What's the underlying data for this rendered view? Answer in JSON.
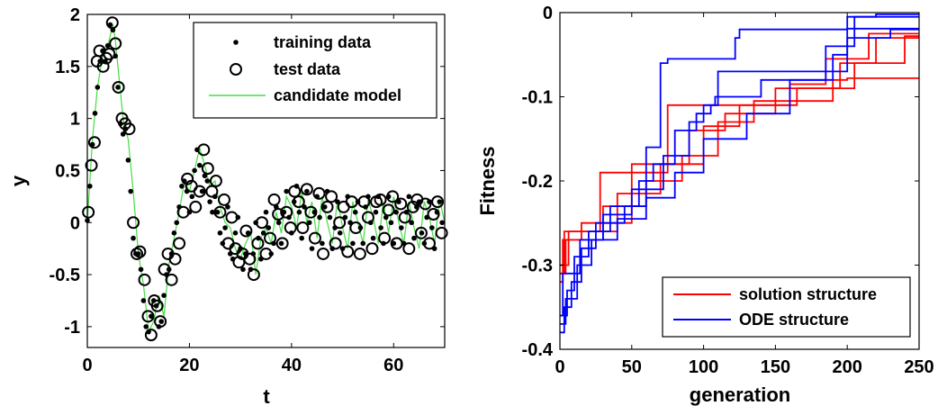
{
  "chart_data": [
    {
      "type": "scatter",
      "xlabel": "t",
      "ylabel": "y",
      "xlim": [
        0,
        70
      ],
      "ylim": [
        -1.2,
        2
      ],
      "xticks": [
        "0",
        "20",
        "40",
        "60"
      ],
      "xtick_values": [
        0,
        20,
        40,
        60
      ],
      "yticks": [
        "2",
        "1.5",
        "1",
        "0.5",
        "0",
        "-0.5",
        "-1"
      ],
      "ytick_values": [
        2,
        1.5,
        1,
        0.5,
        0,
        -0.5,
        -1
      ],
      "legend_position": "top-right",
      "series": [
        {
          "name": "training data",
          "marker": "dot",
          "color": "#000000",
          "x": [
            0,
            0.5,
            1,
            1.5,
            2,
            2.5,
            3,
            3.5,
            4,
            4.5,
            5,
            5.5,
            6,
            6.5,
            7,
            7.5,
            8,
            8.5,
            9,
            9.5,
            10,
            10.5,
            11,
            11.5,
            12,
            12.5,
            13,
            13.5,
            14,
            14.5,
            15,
            15.5,
            16,
            16.5,
            17,
            17.5,
            18,
            18.5,
            19,
            19.5,
            20,
            20.5,
            21,
            21.5,
            22,
            22.5,
            23,
            23.5,
            24,
            24.5,
            25,
            25.5,
            26,
            26.5,
            27,
            27.5,
            28,
            28.5,
            29,
            29.5,
            30,
            30.5,
            31,
            31.5,
            32,
            32.5,
            33,
            33.5,
            34,
            34.5,
            35,
            35.5,
            36,
            36.5,
            37,
            37.5,
            38,
            38.5,
            39,
            39.5,
            40,
            40.5,
            41,
            41.5,
            42,
            42.5,
            43,
            43.5,
            44,
            44.5,
            45,
            45.5,
            46,
            46.5,
            47,
            47.5,
            48,
            48.5,
            49,
            49.5,
            50,
            50.5,
            51,
            51.5,
            52,
            52.5,
            53,
            53.5,
            54,
            54.5,
            55,
            55.5,
            56,
            56.5,
            57,
            57.5,
            58,
            58.5,
            59,
            59.5,
            60,
            60.5,
            61,
            61.5,
            62,
            62.5,
            63,
            63.5,
            64,
            64.5,
            65,
            65.5,
            66,
            66.5,
            67,
            67.5,
            68,
            68.5,
            69,
            69.5
          ],
          "y": [
            0.02,
            0.35,
            0.75,
            1.05,
            1.3,
            1.55,
            1.65,
            1.55,
            1.7,
            1.9,
            1.85,
            1.6,
            1.3,
            0.95,
            0.85,
            0.9,
            0.6,
            0.3,
            -0.15,
            -0.3,
            -0.3,
            -0.45,
            -0.75,
            -1.0,
            -1.05,
            -0.9,
            -0.75,
            -0.8,
            -1.0,
            -0.95,
            -0.7,
            -0.5,
            -0.45,
            -0.3,
            -0.1,
            0.0,
            0.15,
            0.35,
            0.4,
            0.3,
            0.1,
            0.25,
            0.5,
            0.7,
            0.55,
            0.3,
            0.45,
            0.4,
            0.2,
            0.1,
            0.25,
            0.1,
            -0.1,
            -0.2,
            -0.05,
            0.15,
            -0.3,
            -0.35,
            -0.1,
            0.05,
            -0.25,
            -0.45,
            -0.3,
            -0.1,
            -0.45,
            -0.3,
            0.0,
            -0.15,
            -0.35,
            -0.1,
            0.1,
            -0.05,
            -0.3,
            -0.2,
            0.15,
            0.0,
            -0.2,
            0.1,
            0.3,
            0.05,
            -0.1,
            0.2,
            0.35,
            0.1,
            -0.15,
            0.15,
            0.3,
            0.0,
            -0.25,
            0.1,
            0.25,
            0.05,
            -0.2,
            0.15,
            0.3,
            0.05,
            -0.25,
            -0.05,
            0.2,
            -0.1,
            -0.25,
            0.05,
            0.25,
            0.0,
            -0.2,
            0.1,
            0.2,
            -0.05,
            -0.2,
            0.15,
            0.25,
            0.0,
            -0.15,
            0.1,
            0.25,
            -0.05,
            -0.2,
            0.05,
            0.25,
            0.0,
            -0.2,
            0.1,
            0.2,
            -0.05,
            -0.2,
            0.1,
            0.25,
            0.0,
            -0.15,
            0.15,
            0.2,
            -0.1,
            -0.2,
            0.05,
            0.2,
            -0.05,
            -0.25,
            0.1,
            0.2,
            0.0
          ]
        },
        {
          "name": "test data",
          "marker": "circle",
          "color": "#000000",
          "x": [
            0.2,
            0.8,
            1.4,
            1.9,
            2.4,
            3.1,
            3.7,
            4.3,
            4.9,
            5.5,
            6.1,
            6.8,
            7.4,
            8.2,
            9,
            9.7,
            10.3,
            11.2,
            11.9,
            12.5,
            13.1,
            13.7,
            14.3,
            15.1,
            15.8,
            16.5,
            17.2,
            18,
            18.8,
            19.6,
            20.4,
            21.2,
            22,
            22.8,
            23.6,
            24.4,
            25.2,
            26,
            26.8,
            27.6,
            28.3,
            29,
            29.7,
            30.4,
            31.1,
            31.8,
            32.6,
            33.4,
            34.2,
            35,
            35.8,
            36.6,
            37.4,
            38.2,
            39,
            39.8,
            40.6,
            41.4,
            42.2,
            43,
            43.8,
            44.6,
            45.4,
            46.2,
            47,
            47.8,
            48.6,
            49.4,
            50.2,
            51,
            51.8,
            52.6,
            53.4,
            54.2,
            55,
            55.8,
            56.6,
            57.4,
            58.2,
            59,
            59.8,
            60.6,
            61.4,
            62.2,
            63,
            63.8,
            64.6,
            65.4,
            66.2,
            67,
            67.8,
            68.6,
            69.4
          ],
          "y": [
            0.1,
            0.55,
            0.77,
            1.55,
            1.65,
            1.5,
            1.58,
            1.62,
            1.92,
            1.72,
            1.3,
            1.0,
            0.95,
            0.9,
            0.0,
            -0.3,
            -0.28,
            -0.55,
            -0.9,
            -1.08,
            -0.75,
            -0.8,
            -0.95,
            -0.45,
            -0.3,
            -0.55,
            -0.35,
            -0.2,
            0.1,
            0.42,
            0.35,
            0.15,
            0.3,
            0.7,
            0.52,
            0.3,
            0.4,
            0.1,
            0.22,
            -0.2,
            0.05,
            -0.25,
            -0.38,
            -0.3,
            -0.08,
            -0.35,
            -0.5,
            -0.2,
            0.0,
            -0.3,
            -0.15,
            0.22,
            0.08,
            -0.2,
            0.1,
            -0.05,
            0.3,
            0.2,
            -0.05,
            0.32,
            0.1,
            -0.15,
            0.28,
            -0.3,
            0.15,
            0.25,
            -0.2,
            0.0,
            0.15,
            -0.28,
            0.2,
            -0.05,
            -0.3,
            0.2,
            0.05,
            -0.25,
            0.2,
            0.22,
            -0.15,
            0.12,
            0.25,
            -0.2,
            0.18,
            0.05,
            -0.25,
            0.15,
            0.22,
            -0.1,
            0.18,
            -0.2,
            0.08,
            0.2,
            -0.1
          ]
        },
        {
          "name": "candidate model",
          "marker": "line",
          "color": "#44dd44",
          "x": [
            0,
            1,
            2,
            3,
            4,
            5,
            5.5,
            6,
            7,
            8,
            9,
            10,
            11,
            12,
            13,
            14,
            15,
            16,
            17,
            18,
            19,
            20,
            21,
            22,
            23,
            24,
            25,
            26,
            27,
            28,
            29,
            30,
            31,
            32,
            33,
            34,
            35,
            36,
            37,
            38,
            39,
            40,
            41,
            42,
            43,
            44,
            45,
            46,
            47,
            48,
            49,
            50,
            51,
            52,
            53,
            54,
            55,
            56,
            57,
            58,
            59,
            60,
            61,
            62,
            63,
            64,
            65,
            66,
            67,
            68,
            69,
            70
          ],
          "y": [
            0.0,
            0.8,
            1.3,
            1.6,
            1.7,
            1.9,
            1.75,
            1.5,
            1.0,
            0.8,
            0.3,
            -0.3,
            -0.6,
            -1.05,
            -0.95,
            -0.7,
            -0.9,
            -0.4,
            -0.15,
            0.1,
            0.4,
            0.3,
            0.5,
            0.72,
            0.55,
            0.35,
            0.4,
            0.15,
            0.0,
            -0.05,
            -0.25,
            -0.35,
            -0.2,
            -0.1,
            -0.5,
            -0.15,
            -0.05,
            -0.2,
            0.1,
            -0.1,
            0.25,
            0.15,
            -0.05,
            0.3,
            0.0,
            0.2,
            -0.15,
            0.25,
            0.0,
            -0.2,
            0.22,
            -0.05,
            -0.25,
            0.2,
            0.0,
            -0.2,
            0.22,
            0.05,
            -0.2,
            0.2,
            -0.1,
            0.25,
            0.0,
            -0.2,
            0.2,
            -0.05,
            -0.25,
            0.2,
            0.05,
            -0.2,
            0.22,
            0.0
          ]
        }
      ]
    },
    {
      "type": "line",
      "xlabel": "generation",
      "ylabel": "Fitness",
      "xlim": [
        0,
        250
      ],
      "ylim": [
        -0.4,
        0
      ],
      "xticks": [
        "0",
        "50",
        "100",
        "150",
        "200",
        "250"
      ],
      "xtick_values": [
        0,
        50,
        100,
        150,
        200,
        250
      ],
      "yticks": [
        "0",
        "-0.1",
        "-0.2",
        "-0.3",
        "-0.4"
      ],
      "ytick_values": [
        0,
        -0.1,
        -0.2,
        -0.3,
        -0.4
      ],
      "legend_position": "bottom-right",
      "legend": [
        {
          "name": "solution structure",
          "color": "#ff0000"
        },
        {
          "name": "ODE structure",
          "color": "#0000ff"
        }
      ],
      "series": [
        {
          "color": "#ff0000",
          "x": [
            0,
            3,
            3,
            28,
            28,
            75,
            75,
            135,
            135,
            190,
            190,
            200,
            200,
            250
          ],
          "y": [
            -0.31,
            -0.31,
            -0.26,
            -0.26,
            -0.19,
            -0.19,
            -0.11,
            -0.11,
            -0.105,
            -0.105,
            -0.08,
            -0.08,
            -0.078,
            -0.078
          ]
        },
        {
          "color": "#ff0000",
          "x": [
            0,
            2,
            2,
            15,
            15,
            50,
            50,
            90,
            90,
            115,
            115,
            150,
            150,
            195,
            195,
            220,
            220,
            250
          ],
          "y": [
            -0.32,
            -0.32,
            -0.27,
            -0.27,
            -0.25,
            -0.25,
            -0.18,
            -0.18,
            -0.14,
            -0.14,
            -0.12,
            -0.12,
            -0.09,
            -0.09,
            -0.06,
            -0.06,
            -0.03,
            -0.03
          ]
        },
        {
          "color": "#ff0000",
          "x": [
            0,
            4,
            4,
            30,
            30,
            60,
            60,
            85,
            85,
            110,
            110,
            135,
            135,
            165,
            165,
            205,
            205,
            240,
            240,
            250
          ],
          "y": [
            -0.31,
            -0.31,
            -0.27,
            -0.27,
            -0.23,
            -0.23,
            -0.2,
            -0.2,
            -0.17,
            -0.17,
            -0.13,
            -0.13,
            -0.11,
            -0.11,
            -0.09,
            -0.09,
            -0.06,
            -0.06,
            -0.028,
            -0.028
          ]
        },
        {
          "color": "#ff0000",
          "x": [
            0,
            6,
            6,
            40,
            40,
            70,
            70,
            100,
            100,
            125,
            125,
            160,
            160,
            185,
            185,
            215,
            215,
            250
          ],
          "y": [
            -0.3,
            -0.3,
            -0.26,
            -0.26,
            -0.215,
            -0.215,
            -0.18,
            -0.18,
            -0.135,
            -0.135,
            -0.11,
            -0.11,
            -0.085,
            -0.085,
            -0.055,
            -0.055,
            -0.025,
            -0.025
          ]
        },
        {
          "color": "#0000ff",
          "x": [
            0,
            5,
            5,
            10,
            10,
            20,
            20,
            35,
            35,
            60,
            60,
            70,
            70,
            75,
            75,
            122,
            122,
            125,
            125,
            200,
            200,
            250
          ],
          "y": [
            -0.36,
            -0.36,
            -0.33,
            -0.33,
            -0.29,
            -0.29,
            -0.26,
            -0.26,
            -0.23,
            -0.23,
            -0.16,
            -0.16,
            -0.06,
            -0.06,
            -0.055,
            -0.055,
            -0.03,
            -0.03,
            -0.02,
            -0.02,
            -0.019,
            -0.019
          ]
        },
        {
          "color": "#0000ff",
          "x": [
            0,
            3,
            3,
            8,
            8,
            15,
            15,
            25,
            25,
            45,
            45,
            55,
            55,
            65,
            65,
            80,
            80,
            95,
            95,
            105,
            105,
            110,
            110,
            200,
            200,
            220,
            220,
            250
          ],
          "y": [
            -0.38,
            -0.38,
            -0.35,
            -0.35,
            -0.32,
            -0.32,
            -0.28,
            -0.28,
            -0.25,
            -0.25,
            -0.23,
            -0.23,
            -0.2,
            -0.2,
            -0.18,
            -0.18,
            -0.14,
            -0.14,
            -0.12,
            -0.12,
            -0.11,
            -0.11,
            -0.07,
            -0.07,
            -0.005,
            -0.005,
            -0.002,
            -0.002
          ]
        },
        {
          "color": "#0000ff",
          "x": [
            0,
            4,
            4,
            12,
            12,
            22,
            22,
            40,
            40,
            60,
            60,
            80,
            80,
            100,
            100,
            130,
            130,
            160,
            160,
            190,
            190,
            200,
            200,
            230,
            230,
            250
          ],
          "y": [
            -0.37,
            -0.37,
            -0.34,
            -0.34,
            -0.3,
            -0.3,
            -0.27,
            -0.27,
            -0.245,
            -0.245,
            -0.22,
            -0.22,
            -0.19,
            -0.19,
            -0.15,
            -0.15,
            -0.12,
            -0.12,
            -0.08,
            -0.08,
            -0.05,
            -0.05,
            -0.03,
            -0.03,
            -0.02,
            -0.02
          ]
        },
        {
          "color": "#0000ff",
          "x": [
            0,
            2,
            2,
            14,
            14,
            30,
            30,
            50,
            50,
            72,
            72,
            90,
            90,
            100,
            100,
            108,
            108,
            140,
            140,
            185,
            185,
            205,
            205,
            250
          ],
          "y": [
            -0.36,
            -0.36,
            -0.31,
            -0.31,
            -0.27,
            -0.27,
            -0.24,
            -0.24,
            -0.21,
            -0.21,
            -0.17,
            -0.17,
            -0.13,
            -0.13,
            -0.11,
            -0.11,
            -0.1,
            -0.1,
            -0.08,
            -0.08,
            -0.04,
            -0.04,
            -0.005,
            -0.005
          ]
        }
      ]
    }
  ]
}
